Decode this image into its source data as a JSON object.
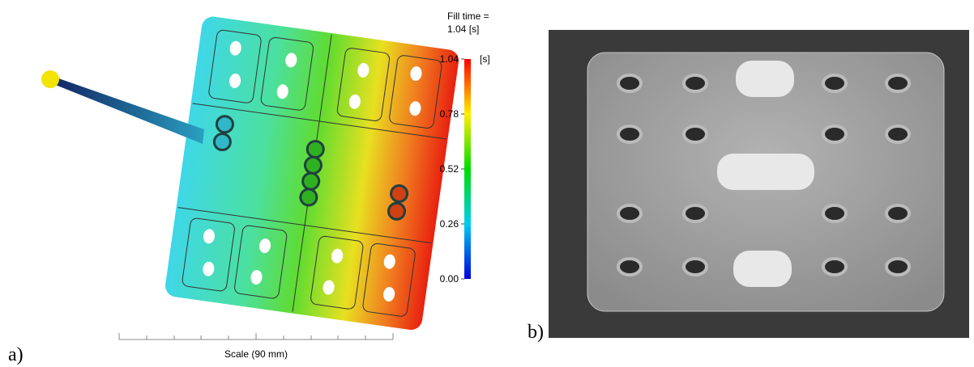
{
  "panel_a": {
    "label": "a)",
    "fill_time_label": "Fill time =",
    "fill_time_value": "1.04 [s]",
    "colorbar": {
      "unit": "[s]",
      "range": [
        0,
        1.04
      ],
      "ticks": [
        1.04,
        0.78,
        0.52,
        0.26,
        {
          "value": 0,
          "label": "0.00"
        }
      ]
    },
    "scale_label": "Scale (90 mm)"
  },
  "panel_b": {
    "label": "b)"
  }
}
